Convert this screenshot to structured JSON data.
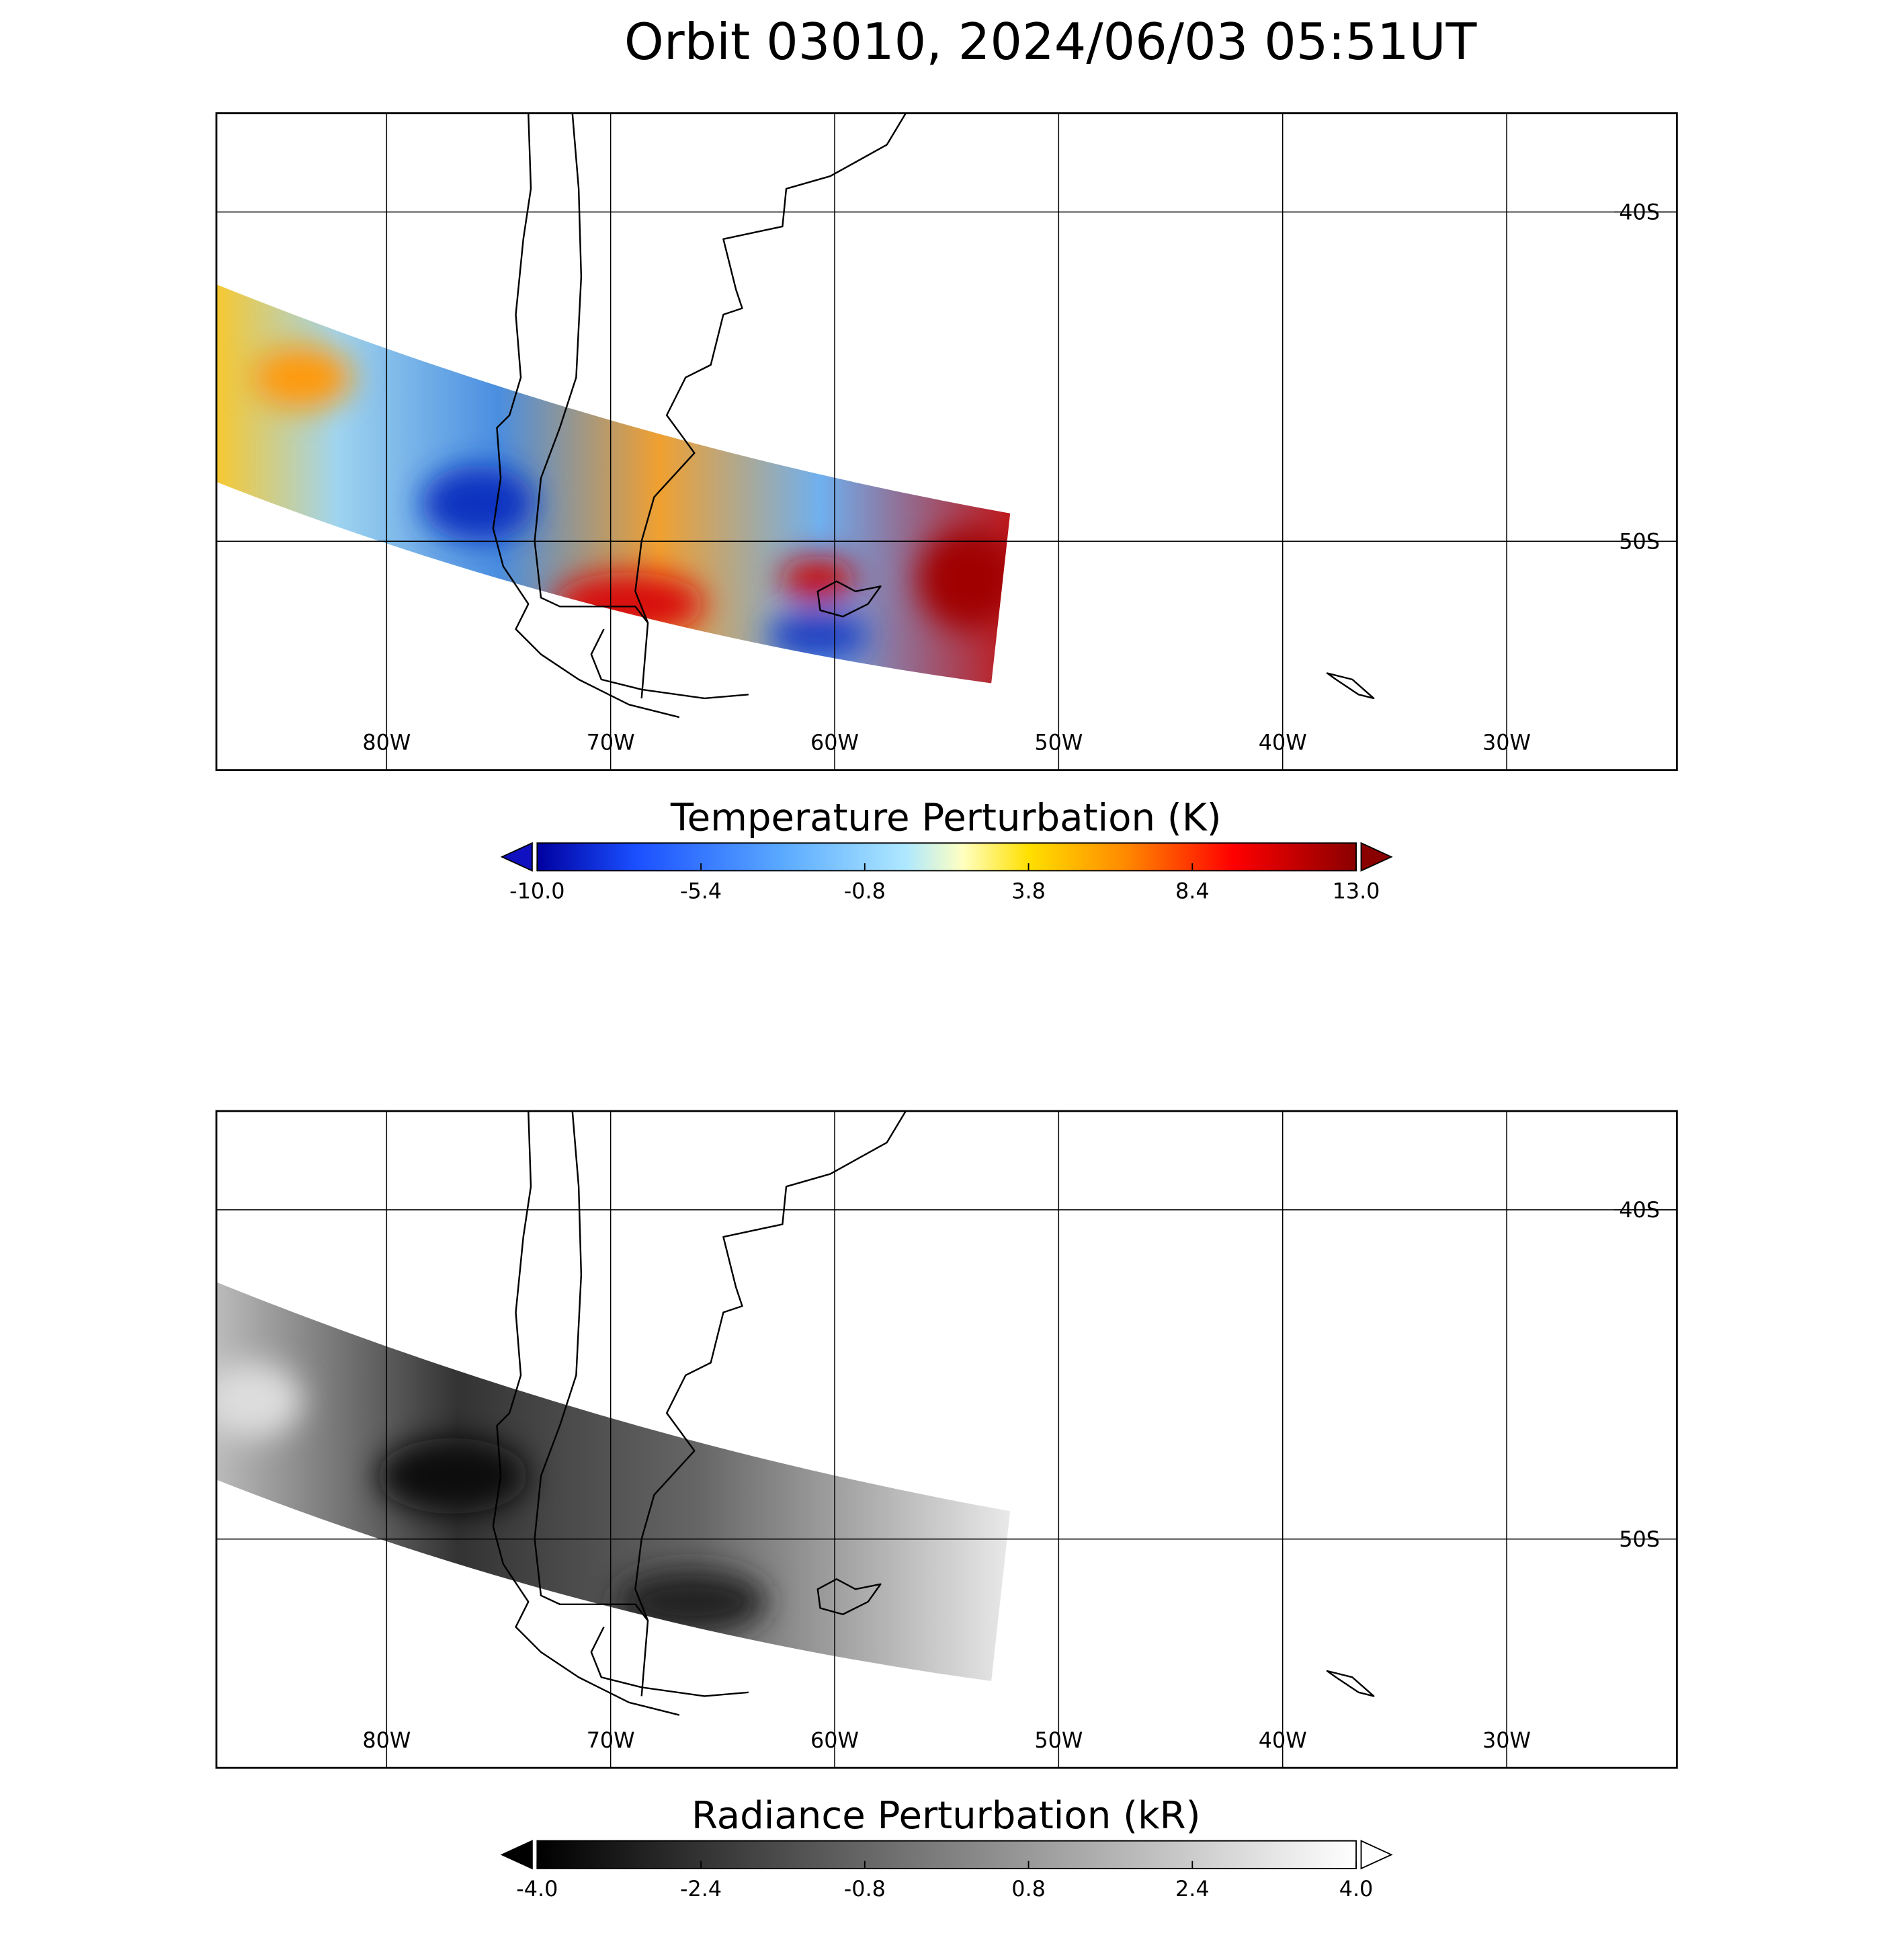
{
  "title": "Orbit 03010, 2024/06/03 05:51UT",
  "panels": [
    {
      "lonlim": [
        -87.6,
        -22.4
      ],
      "latlim": [
        -56.95,
        -37.0
      ],
      "lon_ticks": [
        {
          "value": -80,
          "label": "80W"
        },
        {
          "value": -70,
          "label": "70W"
        },
        {
          "value": -60,
          "label": "60W"
        },
        {
          "value": -50,
          "label": "50W"
        },
        {
          "value": -40,
          "label": "40W"
        },
        {
          "value": -30,
          "label": "30W"
        }
      ],
      "lat_ticks": [
        {
          "value": -40,
          "label": "40S"
        },
        {
          "value": -50,
          "label": "50S"
        }
      ],
      "colorbar": {
        "title": "Temperature Perturbation (K)",
        "range": [
          -10,
          13
        ],
        "ticks": [
          {
            "value": -10,
            "label": "-10.0"
          },
          {
            "value": -5.4,
            "label": "-5.4"
          },
          {
            "value": -0.8,
            "label": "-0.8"
          },
          {
            "value": 3.8,
            "label": "3.8"
          },
          {
            "value": 8.4,
            "label": "8.4"
          },
          {
            "value": 13,
            "label": "13.0"
          }
        ]
      }
    },
    {
      "lonlim": [
        -87.6,
        -22.4
      ],
      "latlim": [
        -56.95,
        -37.0
      ],
      "lon_ticks": [
        {
          "value": -80,
          "label": "80W"
        },
        {
          "value": -70,
          "label": "70W"
        },
        {
          "value": -60,
          "label": "60W"
        },
        {
          "value": -50,
          "label": "50W"
        },
        {
          "value": -40,
          "label": "40W"
        },
        {
          "value": -30,
          "label": "30W"
        }
      ],
      "lat_ticks": [
        {
          "value": -40,
          "label": "40S"
        },
        {
          "value": -50,
          "label": "50S"
        }
      ],
      "colorbar": {
        "title": "Radiance Perturbation (kR)",
        "range": [
          -4,
          4
        ],
        "ticks": [
          {
            "value": -4,
            "label": "-4.0"
          },
          {
            "value": -2.4,
            "label": "-2.4"
          },
          {
            "value": -0.8,
            "label": "-0.8"
          },
          {
            "value": 0.8,
            "label": "0.8"
          },
          {
            "value": 2.4,
            "label": "2.4"
          },
          {
            "value": 4,
            "label": "4.0"
          }
        ]
      }
    }
  ]
}
